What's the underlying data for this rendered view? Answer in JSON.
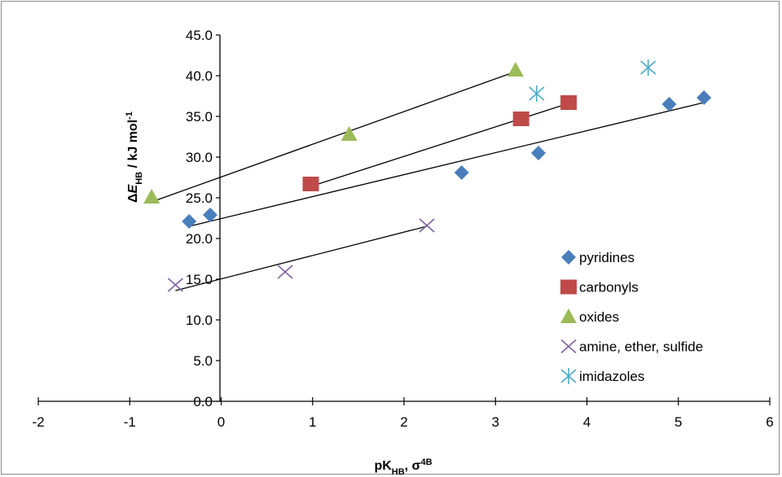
{
  "chart_data": {
    "type": "scatter",
    "xlim": [
      -2,
      6
    ],
    "ylim": [
      0,
      45
    ],
    "x_ticks": [
      "-2",
      "-1",
      "0",
      "1",
      "2",
      "3",
      "4",
      "5",
      "6"
    ],
    "y_ticks": [
      "0.0",
      "5.0",
      "10.0",
      "15.0",
      "20.0",
      "25.0",
      "30.0",
      "35.0",
      "40.0",
      "45.0"
    ],
    "xlabel": {
      "main": "pK",
      "sub1": "HB",
      "sep": ", σ",
      "sup": "4B"
    },
    "ylabel": {
      "delta": "Δ",
      "e": "E",
      "sub": "HB",
      "rest": " / kJ mol",
      "sup": "-1"
    },
    "grid": false,
    "legend_position": "right",
    "series": [
      {
        "name": "pyridines",
        "marker": "diamond",
        "color": "#4a7ebb",
        "x": [
          -0.35,
          -0.12,
          2.63,
          3.47,
          4.9,
          5.28
        ],
        "y": [
          22.1,
          22.9,
          28.1,
          30.5,
          36.5,
          37.3
        ],
        "trendline": [
          [
            -0.35,
            21.5
          ],
          [
            5.28,
            36.7
          ]
        ]
      },
      {
        "name": "carbonyls",
        "marker": "square",
        "color": "#be4b48",
        "x": [
          0.98,
          3.28,
          3.8
        ],
        "y": [
          26.7,
          34.7,
          36.7
        ],
        "trendline": [
          [
            0.98,
            26.4
          ],
          [
            3.8,
            36.6
          ]
        ]
      },
      {
        "name": "oxides",
        "marker": "triangle",
        "color": "#9bbb59",
        "x": [
          -0.76,
          1.4,
          3.22
        ],
        "y": [
          25.1,
          32.8,
          40.7
        ],
        "trendline": [
          [
            -0.76,
            24.5
          ],
          [
            3.22,
            40.5
          ]
        ]
      },
      {
        "name": "amine, ether, sulfide",
        "marker": "x",
        "color": "#8064a2",
        "x": [
          -0.5,
          0.7,
          2.25
        ],
        "y": [
          14.3,
          15.9,
          21.6
        ],
        "trendline": [
          [
            -0.5,
            13.6
          ],
          [
            2.25,
            21.5
          ]
        ]
      },
      {
        "name": "imidazoles",
        "marker": "asterisk",
        "color": "#4bacc6",
        "x": [
          3.45,
          4.67
        ],
        "y": [
          37.8,
          41.0
        ],
        "trendline": null
      }
    ]
  }
}
